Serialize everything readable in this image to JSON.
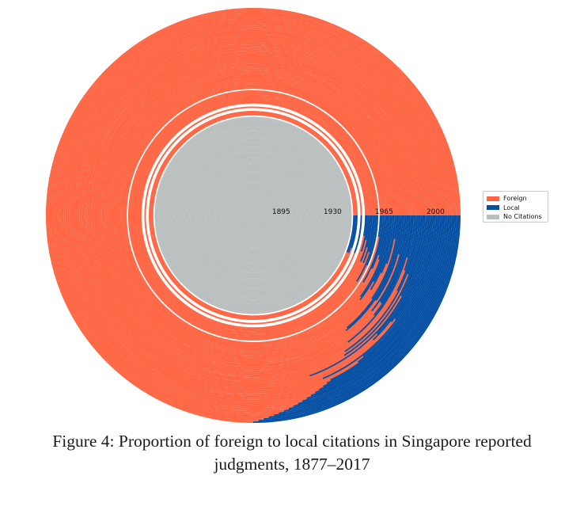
{
  "chart_data": {
    "type": "radial-stacked",
    "title": "",
    "years": [
      1877,
      2017
    ],
    "radial_ticks": [
      "1895",
      "1930",
      "1965",
      "2000"
    ],
    "series": [
      {
        "name": "Foreign",
        "color": "#ff6542"
      },
      {
        "name": "Local",
        "color": "#034ea2"
      },
      {
        "name": "No Citations",
        "color": "#b9bfbe"
      }
    ],
    "no_citation_years": [
      1877,
      1878,
      1879,
      1880,
      1881,
      1882,
      1883,
      1884,
      1885,
      1886,
      1887,
      1888,
      1889,
      1890,
      1891,
      1892,
      1893,
      1894,
      1895,
      1896,
      1897,
      1898,
      1899,
      1900,
      1901,
      1902,
      1903,
      1904,
      1905,
      1906,
      1907,
      1908,
      1909,
      1910,
      1911,
      1912,
      1913,
      1914,
      1915,
      1916,
      1917,
      1918,
      1919,
      1920,
      1921,
      1922,
      1923,
      1924,
      1925,
      1926,
      1927,
      1928,
      1929,
      1930,
      1931,
      1932,
      1933,
      1934,
      1935,
      1936,
      1937,
      1938,
      1939,
      1940,
      1941,
      1942,
      1943
    ],
    "local_share_recent_approx": [
      {
        "year": 2000,
        "local_share": 0.18
      },
      {
        "year": 2017,
        "local_share": 0.25
      }
    ]
  },
  "caption_lines": [
    "Figure 4: Proportion of foreign to local citations in Singapore reported",
    "judgments, 1877–2017"
  ]
}
